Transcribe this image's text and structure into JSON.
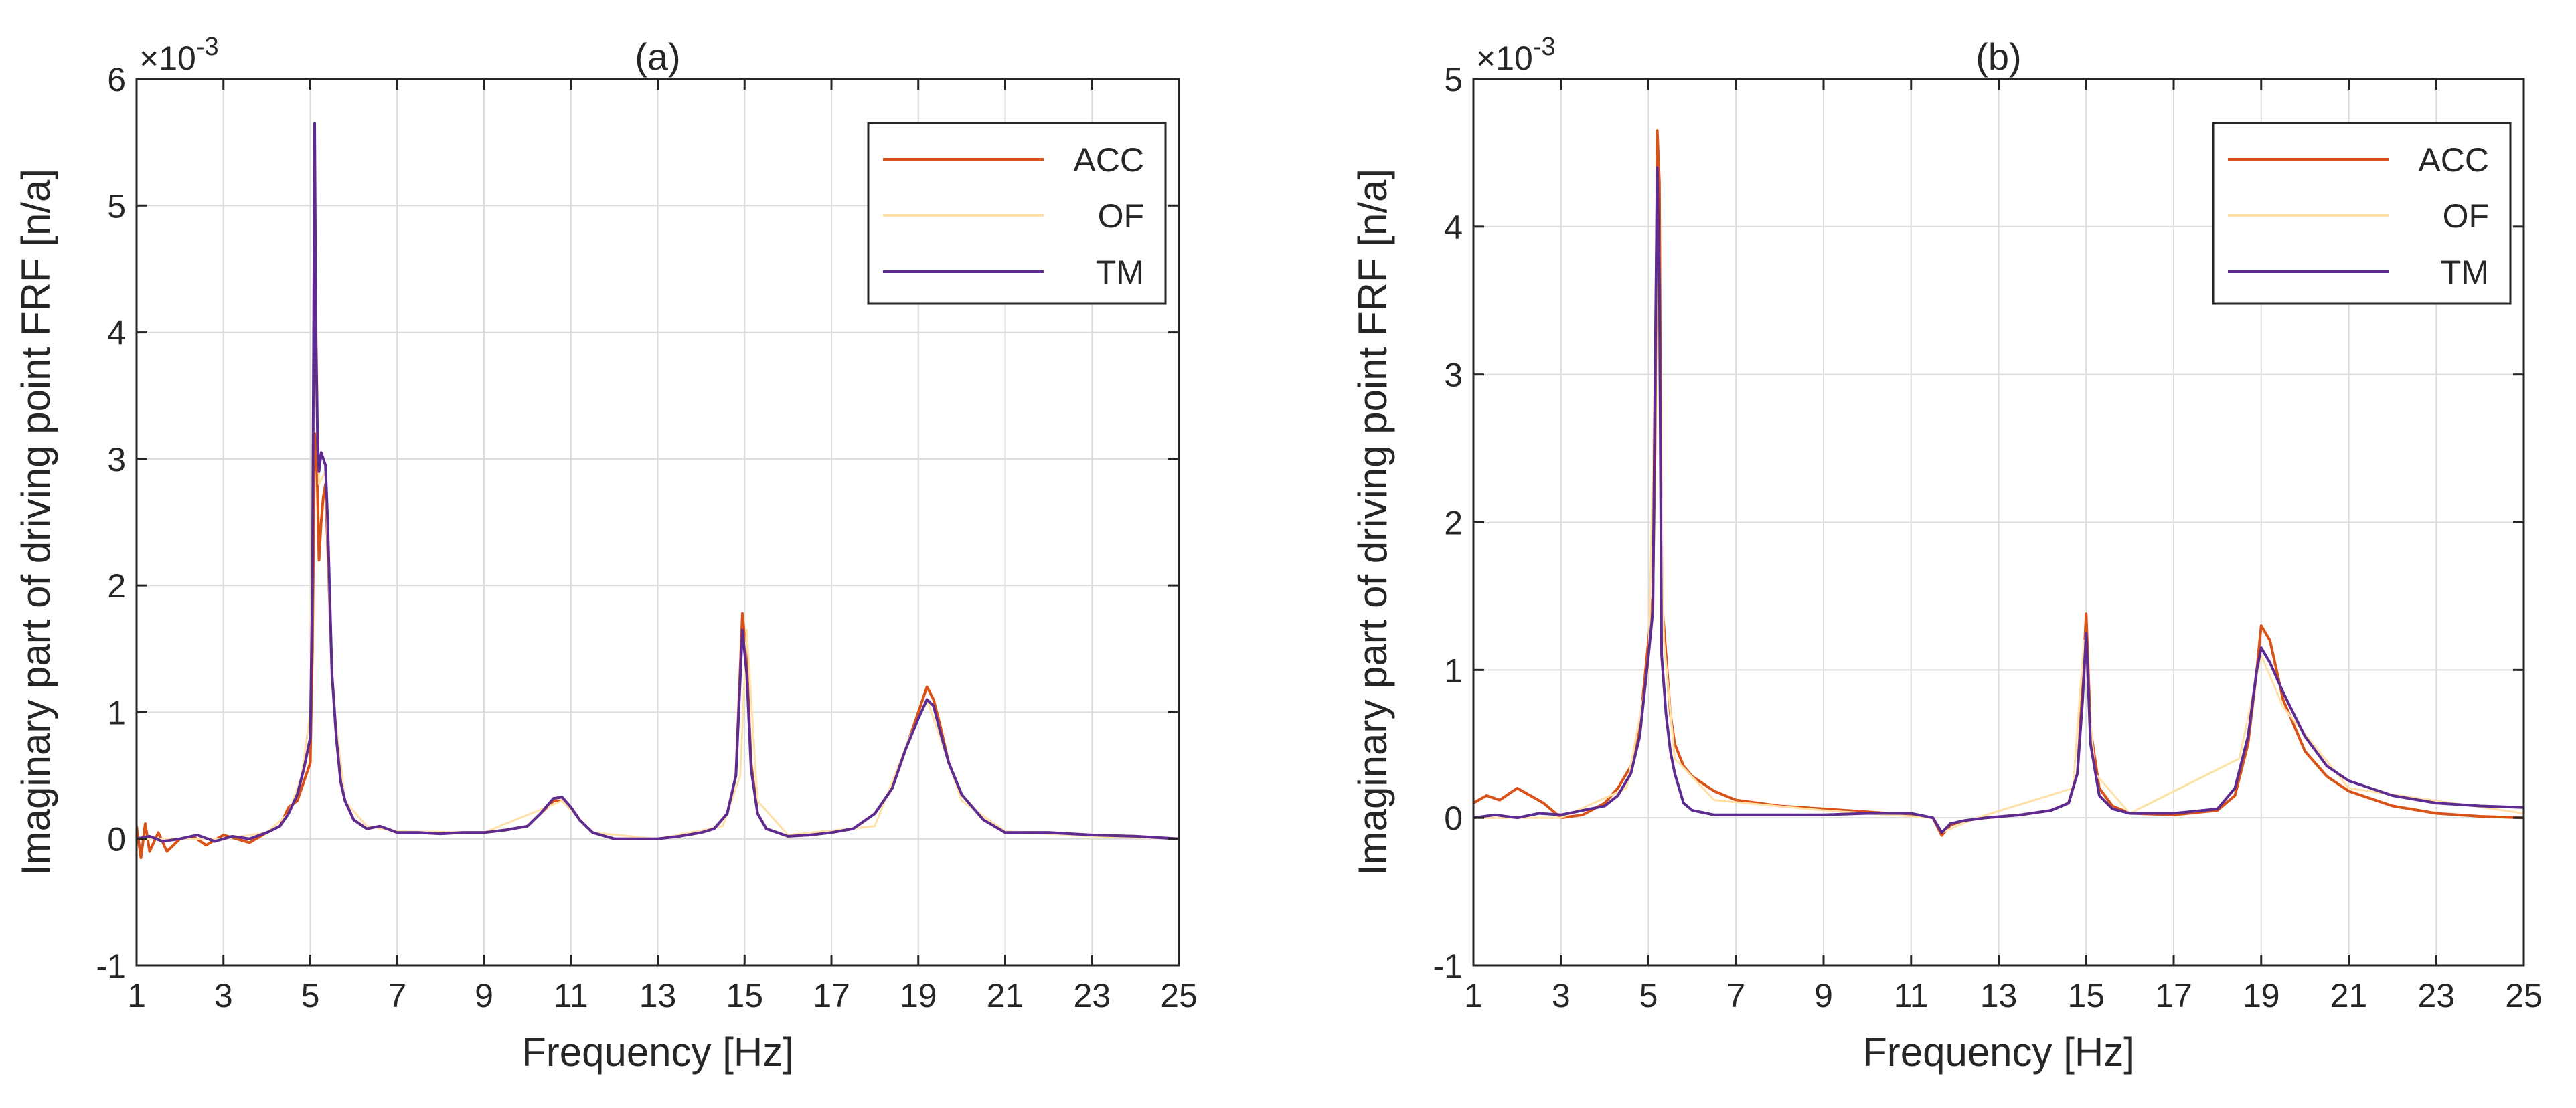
{
  "chart_data": [
    {
      "type": "line",
      "panel": "a",
      "title": "(a)",
      "xlabel": "Frequency [Hz]",
      "ylabel": "Imaginary part of driving point FRF [n/a]",
      "y_exponent_label": "×10",
      "y_exponent": "-3",
      "xlim": [
        1,
        25
      ],
      "ylim": [
        -1,
        6
      ],
      "xticks": [
        1,
        3,
        5,
        7,
        9,
        11,
        13,
        15,
        17,
        19,
        21,
        23,
        25
      ],
      "xtick_labels": [
        "1",
        "3",
        "5",
        "7",
        "9",
        "11",
        "13",
        "15",
        "17",
        "19",
        "21",
        "23",
        "25"
      ],
      "yticks": [
        -1,
        0,
        1,
        2,
        3,
        4,
        5,
        6
      ],
      "ytick_labels": [
        "-1",
        "0",
        "1",
        "2",
        "3",
        "4",
        "5",
        "6"
      ],
      "grid": true,
      "legend_position": "top-right",
      "series": [
        {
          "name": "ACC",
          "color": "#d95319",
          "x": [
            1,
            1.1,
            1.2,
            1.3,
            1.5,
            1.7,
            2,
            2.3,
            2.6,
            3,
            3.3,
            3.6,
            4,
            4.3,
            4.5,
            4.7,
            4.8,
            4.9,
            4.95,
            5.0,
            5.05,
            5.1,
            5.15,
            5.2,
            5.25,
            5.3,
            5.35,
            5.4,
            5.5,
            5.6,
            5.7,
            5.8,
            6,
            6.3,
            6.6,
            7,
            7.5,
            8,
            8.5,
            9,
            9.5,
            10,
            10.3,
            10.6,
            10.8,
            11,
            11.2,
            11.5,
            12,
            12.5,
            13,
            13.5,
            14,
            14.3,
            14.6,
            14.8,
            14.95,
            15.05,
            15.15,
            15.3,
            15.5,
            16,
            16.5,
            17,
            17.5,
            18,
            18.4,
            18.7,
            19,
            19.2,
            19.35,
            19.5,
            19.7,
            20,
            20.5,
            21,
            22,
            23,
            24,
            25
          ],
          "y": [
            0.1,
            -0.15,
            0.12,
            -0.1,
            0.05,
            -0.1,
            0.0,
            0.02,
            -0.05,
            0.03,
            0.0,
            -0.03,
            0.05,
            0.1,
            0.25,
            0.3,
            0.4,
            0.5,
            0.55,
            0.6,
            1.5,
            3.2,
            3.0,
            2.2,
            2.5,
            2.7,
            2.8,
            2.3,
            1.3,
            0.8,
            0.45,
            0.3,
            0.15,
            0.08,
            0.1,
            0.05,
            0.05,
            0.04,
            0.05,
            0.05,
            0.07,
            0.1,
            0.2,
            0.3,
            0.3,
            0.25,
            0.15,
            0.05,
            0.0,
            0.0,
            0.0,
            0.02,
            0.05,
            0.08,
            0.2,
            0.5,
            1.78,
            1.4,
            0.6,
            0.2,
            0.08,
            0.02,
            0.03,
            0.05,
            0.08,
            0.2,
            0.4,
            0.7,
            1.0,
            1.2,
            1.1,
            0.9,
            0.6,
            0.35,
            0.15,
            0.05,
            0.05,
            0.03,
            0.02,
            0.0
          ]
        },
        {
          "name": "OF",
          "color": "#ffe1a8",
          "x": [
            1,
            2,
            3,
            4,
            4.5,
            4.8,
            5.0,
            5.1,
            5.2,
            5.35,
            5.5,
            5.8,
            6.3,
            7,
            9,
            10.8,
            11.5,
            13,
            14.5,
            14.9,
            15.05,
            15.3,
            16,
            18,
            18.8,
            19.2,
            19.5,
            20,
            21,
            23,
            25
          ],
          "y": [
            0.0,
            0.0,
            0.0,
            0.05,
            0.2,
            0.5,
            1.0,
            5.0,
            2.8,
            2.9,
            1.2,
            0.3,
            0.1,
            0.06,
            0.05,
            0.3,
            0.05,
            0.0,
            0.1,
            0.5,
            1.65,
            0.3,
            0.03,
            0.1,
            0.8,
            1.1,
            0.8,
            0.3,
            0.06,
            0.02,
            0.0
          ]
        },
        {
          "name": "TM",
          "color": "#5e2c91",
          "x": [
            1,
            1.3,
            1.6,
            2,
            2.4,
            2.8,
            3.2,
            3.6,
            4,
            4.3,
            4.5,
            4.7,
            4.85,
            5.0,
            5.05,
            5.1,
            5.13,
            5.17,
            5.2,
            5.25,
            5.3,
            5.35,
            5.4,
            5.5,
            5.6,
            5.7,
            5.8,
            6,
            6.3,
            6.6,
            7,
            7.5,
            8,
            8.5,
            9,
            9.5,
            10,
            10.3,
            10.6,
            10.8,
            11,
            11.2,
            11.5,
            12,
            12.5,
            13,
            13.5,
            14,
            14.3,
            14.6,
            14.8,
            14.95,
            15.05,
            15.15,
            15.3,
            15.5,
            16,
            16.5,
            17,
            17.5,
            18,
            18.4,
            18.7,
            19,
            19.2,
            19.35,
            19.5,
            19.7,
            20,
            20.5,
            21,
            22,
            23,
            24,
            25
          ],
          "y": [
            0.0,
            0.02,
            -0.02,
            0.0,
            0.03,
            -0.02,
            0.02,
            0.0,
            0.05,
            0.1,
            0.2,
            0.35,
            0.55,
            0.8,
            2.0,
            5.65,
            4.0,
            3.1,
            2.9,
            3.05,
            3.0,
            2.95,
            2.5,
            1.3,
            0.8,
            0.45,
            0.3,
            0.15,
            0.08,
            0.1,
            0.05,
            0.05,
            0.04,
            0.05,
            0.05,
            0.07,
            0.1,
            0.2,
            0.32,
            0.33,
            0.25,
            0.15,
            0.05,
            0.0,
            0.0,
            0.0,
            0.02,
            0.05,
            0.08,
            0.2,
            0.5,
            1.65,
            1.3,
            0.55,
            0.2,
            0.08,
            0.02,
            0.03,
            0.05,
            0.08,
            0.2,
            0.4,
            0.7,
            0.95,
            1.1,
            1.05,
            0.85,
            0.6,
            0.35,
            0.15,
            0.05,
            0.05,
            0.03,
            0.02,
            0.0
          ]
        }
      ]
    },
    {
      "type": "line",
      "panel": "b",
      "title": "(b)",
      "xlabel": "Frequency [Hz]",
      "ylabel": "Imaginary part of driving point FRF [n/a]",
      "y_exponent_label": "×10",
      "y_exponent": "-3",
      "xlim": [
        1,
        25
      ],
      "ylim": [
        -1,
        5
      ],
      "xticks": [
        1,
        3,
        5,
        7,
        9,
        11,
        13,
        15,
        17,
        19,
        21,
        23,
        25
      ],
      "xtick_labels": [
        "1",
        "3",
        "5",
        "7",
        "9",
        "11",
        "13",
        "15",
        "17",
        "19",
        "21",
        "23",
        "25"
      ],
      "yticks": [
        -1,
        0,
        1,
        2,
        3,
        4,
        5
      ],
      "ytick_labels": [
        "-1",
        "0",
        "1",
        "2",
        "3",
        "4",
        "5"
      ],
      "grid": true,
      "legend_position": "top-right",
      "series": [
        {
          "name": "ACC",
          "color": "#d95319",
          "x": [
            1,
            1.3,
            1.6,
            2,
            2.3,
            2.6,
            3,
            3.5,
            4,
            4.3,
            4.6,
            4.8,
            5.0,
            5.1,
            5.15,
            5.2,
            5.25,
            5.3,
            5.4,
            5.5,
            5.6,
            5.8,
            6,
            6.5,
            7,
            8,
            9,
            10,
            11,
            11.5,
            11.7,
            11.9,
            12.2,
            12.7,
            13.5,
            14.2,
            14.6,
            14.8,
            14.92,
            15.0,
            15.1,
            15.3,
            15.6,
            16,
            17,
            18,
            18.4,
            18.7,
            18.9,
            19.0,
            19.2,
            19.5,
            20,
            20.5,
            21,
            22,
            23,
            24,
            25
          ],
          "y": [
            0.1,
            0.15,
            0.12,
            0.2,
            0.15,
            0.1,
            0.0,
            0.02,
            0.1,
            0.2,
            0.35,
            0.6,
            1.2,
            1.5,
            2.5,
            4.65,
            4.3,
            1.5,
            1.1,
            0.7,
            0.5,
            0.35,
            0.28,
            0.18,
            0.12,
            0.08,
            0.06,
            0.04,
            0.02,
            0.0,
            -0.12,
            -0.05,
            -0.02,
            0.0,
            0.02,
            0.05,
            0.1,
            0.3,
            0.9,
            1.38,
            0.6,
            0.2,
            0.08,
            0.03,
            0.02,
            0.05,
            0.15,
            0.5,
            1.0,
            1.3,
            1.2,
            0.8,
            0.45,
            0.28,
            0.18,
            0.08,
            0.03,
            0.01,
            0.0
          ]
        },
        {
          "name": "OF",
          "color": "#ffe1a8",
          "x": [
            1,
            3,
            4.5,
            5.0,
            5.2,
            5.35,
            5.6,
            6.5,
            9,
            11.5,
            11.7,
            12.5,
            14.7,
            14.95,
            15.2,
            16,
            18.5,
            19.0,
            19.5,
            21,
            25
          ],
          "y": [
            0.0,
            0.0,
            0.2,
            1.0,
            3.8,
            1.2,
            0.4,
            0.12,
            0.05,
            0.0,
            -0.1,
            0.0,
            0.2,
            1.2,
            0.3,
            0.03,
            0.4,
            1.1,
            0.75,
            0.2,
            0.03
          ]
        },
        {
          "name": "TM",
          "color": "#5e2c91",
          "x": [
            1,
            1.5,
            2,
            2.5,
            3,
            3.5,
            4,
            4.3,
            4.6,
            4.8,
            5.0,
            5.1,
            5.15,
            5.2,
            5.25,
            5.3,
            5.4,
            5.5,
            5.6,
            5.8,
            6,
            6.5,
            7,
            8,
            9,
            10,
            11,
            11.5,
            11.7,
            11.9,
            12.2,
            12.7,
            13.5,
            14.2,
            14.6,
            14.8,
            14.92,
            15.0,
            15.1,
            15.3,
            15.6,
            16,
            17,
            18,
            18.4,
            18.7,
            18.9,
            19.0,
            19.2,
            19.5,
            20,
            20.5,
            21,
            22,
            23,
            24,
            25
          ],
          "y": [
            0.0,
            0.02,
            0.0,
            0.03,
            0.02,
            0.05,
            0.08,
            0.15,
            0.3,
            0.55,
            1.1,
            1.4,
            3.0,
            4.4,
            3.6,
            1.1,
            0.7,
            0.45,
            0.3,
            0.1,
            0.05,
            0.02,
            0.02,
            0.02,
            0.02,
            0.03,
            0.03,
            0.0,
            -0.1,
            -0.04,
            -0.02,
            0.0,
            0.02,
            0.05,
            0.1,
            0.3,
            0.8,
            1.25,
            0.5,
            0.15,
            0.06,
            0.03,
            0.03,
            0.06,
            0.2,
            0.55,
            1.0,
            1.15,
            1.05,
            0.85,
            0.55,
            0.35,
            0.25,
            0.15,
            0.1,
            0.08,
            0.07
          ]
        }
      ]
    }
  ]
}
